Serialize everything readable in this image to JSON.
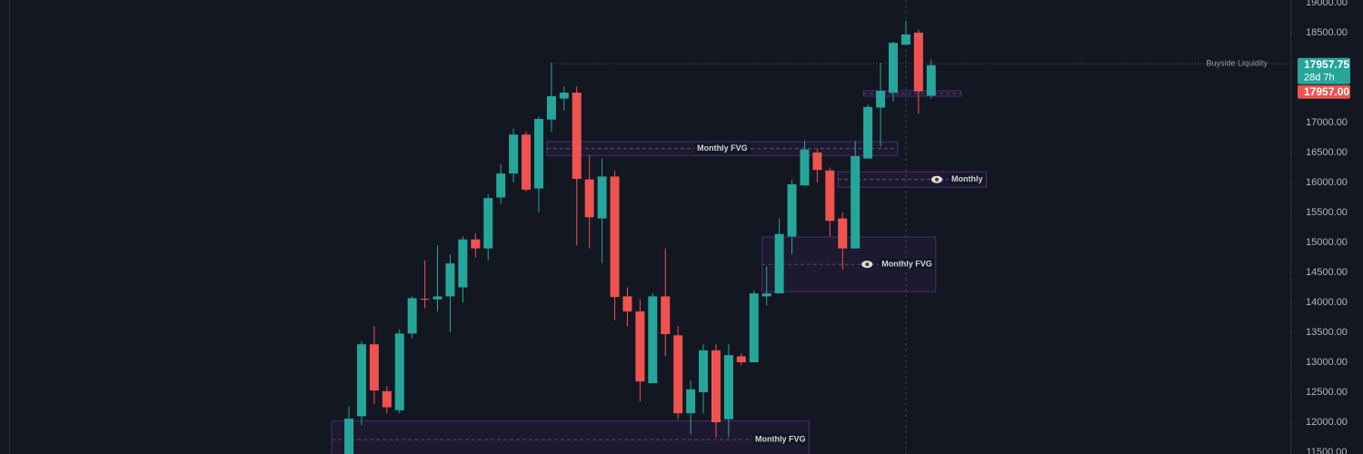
{
  "chart_data": {
    "type": "candlestick",
    "categories": [
      null,
      null,
      null,
      null,
      null,
      null,
      null,
      null,
      null,
      null,
      null,
      null,
      null,
      null,
      null,
      null,
      null,
      null,
      null,
      null,
      null,
      null,
      null,
      null,
      null,
      null,
      null,
      null,
      null,
      null,
      null,
      null,
      null,
      null,
      null,
      null,
      null,
      null,
      null,
      null,
      null,
      null,
      null,
      null,
      null,
      null,
      null
    ],
    "up_color": "#26a69a",
    "down_color": "#ef5350",
    "open": [
      11450,
      12100,
      13300,
      12520,
      12200,
      13480,
      14060,
      14050,
      14100,
      14250,
      15050,
      14900,
      15750,
      16150,
      16800,
      15900,
      17050,
      17400,
      17500,
      16050,
      15400,
      16100,
      14100,
      13850,
      12650,
      14100,
      13450,
      12150,
      12500,
      13200,
      12050,
      13100,
      13000,
      14100,
      14150,
      15100,
      15950,
      16500,
      16200,
      15400,
      14900,
      16400,
      17250,
      17500,
      18300,
      18500,
      17450
    ],
    "high": [
      12260,
      13350,
      13600,
      12600,
      13550,
      14100,
      14700,
      14950,
      14800,
      15100,
      15150,
      15800,
      16300,
      16900,
      16850,
      17100,
      18000,
      17600,
      17600,
      16450,
      16400,
      16200,
      14250,
      14050,
      14150,
      14900,
      13600,
      12700,
      13300,
      13300,
      13300,
      13150,
      14200,
      14600,
      15400,
      16050,
      16700,
      16550,
      16250,
      15500,
      16700,
      17300,
      18000,
      18350,
      18700,
      18550,
      18050
    ],
    "low": [
      11400,
      11950,
      12300,
      12150,
      12150,
      13400,
      13900,
      13850,
      13500,
      14000,
      14750,
      14700,
      15650,
      16000,
      15850,
      15500,
      16850,
      17200,
      14950,
      14900,
      14650,
      13700,
      13600,
      12350,
      12650,
      13100,
      12050,
      11800,
      12150,
      11750,
      11750,
      12950,
      13000,
      13950,
      14150,
      14800,
      15950,
      16000,
      15100,
      14550,
      14900,
      16400,
      16600,
      17350,
      18300,
      17150,
      17400
    ],
    "close": [
      12060,
      13300,
      12530,
      12250,
      13480,
      14070,
      14050,
      14100,
      14650,
      15050,
      14900,
      15740,
      16150,
      16800,
      15880,
      17060,
      17440,
      17500,
      16060,
      15420,
      16100,
      14090,
      13850,
      12680,
      14100,
      13470,
      12150,
      12550,
      13200,
      12000,
      13120,
      13000,
      14150,
      14150,
      15140,
      15970,
      16550,
      16210,
      15360,
      14900,
      16440,
      17260,
      17530,
      18330,
      18470,
      17520,
      17957.75
    ],
    "ylim": [
      11470,
      19045
    ],
    "yticks": [
      {
        "value": 19000,
        "label": "19000.00"
      },
      {
        "value": 18500,
        "label": "18500.00"
      },
      {
        "value": 18000,
        "label": "18000.00"
      },
      {
        "value": 17500,
        "label": "17500.00"
      },
      {
        "value": 17000,
        "label": "17000.00"
      },
      {
        "value": 16500,
        "label": "16500.00"
      },
      {
        "value": 16000,
        "label": "16000.00"
      },
      {
        "value": 15500,
        "label": "15500.00"
      },
      {
        "value": 15000,
        "label": "15000.00"
      },
      {
        "value": 14500,
        "label": "14500.00"
      },
      {
        "value": 14000,
        "label": "14000.00"
      },
      {
        "value": 13500,
        "label": "13500.00"
      },
      {
        "value": 13000,
        "label": "13000.00"
      },
      {
        "value": 12500,
        "label": "12500.00"
      },
      {
        "value": 12000,
        "label": "12000.00"
      },
      {
        "value": 11500,
        "label": "11500.00"
      }
    ],
    "zones": [
      {
        "top": 16680,
        "bottom": 16450,
        "span": [
          16,
          43
        ],
        "label": "Monthly FVG",
        "label_align": "center"
      },
      {
        "top": 15090,
        "bottom": 14180,
        "span": [
          33,
          46
        ],
        "label": "Monthly FVG",
        "label_align": "right"
      },
      {
        "top": 12020,
        "bottom": 11400,
        "span": [
          -1,
          36
        ],
        "label": "Monthly FVG",
        "label_align": "right"
      },
      {
        "top": 16180,
        "bottom": 15920,
        "span": [
          39,
          50
        ],
        "label": "Monthly",
        "label_align": "right"
      },
      {
        "top": 17530,
        "bottom": 17440,
        "span": [
          41,
          48
        ]
      }
    ],
    "liquidity": {
      "value": 17985,
      "start": 16,
      "label": "Buyside Liquidity"
    },
    "last_price": {
      "value": 17957.75,
      "label": "17957.75"
    },
    "countdown": "28d 7h",
    "second_price_label": "17957.00"
  }
}
